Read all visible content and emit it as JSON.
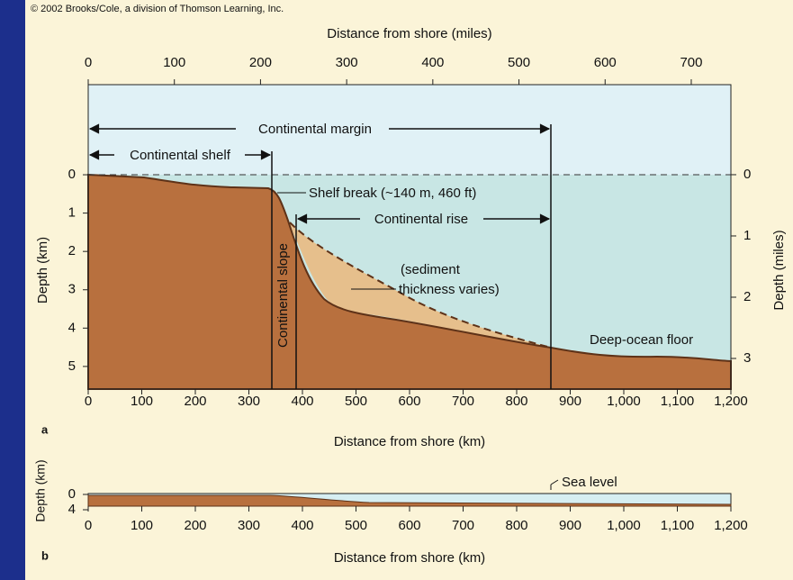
{
  "copyright": "© 2002 Brooks/Cole, a division of Thomson Learning, Inc.",
  "panel_a": {
    "label": "a",
    "top_axis": {
      "title": "Distance from shore (miles)",
      "lim": [
        0,
        746
      ],
      "ticks": [
        0,
        100,
        200,
        300,
        400,
        500,
        600,
        700
      ]
    },
    "bottom_axis": {
      "title": "Distance from shore (km)",
      "lim": [
        0,
        1200
      ],
      "ticks": [
        0,
        100,
        200,
        300,
        400,
        500,
        600,
        700,
        800,
        900,
        {
          "value": 1000,
          "label": "1,000"
        },
        {
          "value": 1100,
          "label": "1,100"
        },
        {
          "value": 1200,
          "label": "1,200"
        }
      ]
    },
    "left_axis": {
      "title": "Depth (km)",
      "lim": [
        -2.35,
        5.59
      ],
      "ticks": [
        0,
        1,
        2,
        3,
        4,
        5
      ]
    },
    "right_axis": {
      "title": "Depth (miles)",
      "lim": [
        -1.47,
        3.5
      ],
      "ticks": [
        0,
        1,
        2,
        3
      ]
    },
    "annotations": {
      "continental_margin": "Continental margin",
      "continental_shelf": "Continental shelf",
      "shelf_break": "Shelf break (~140 m, 460 ft)",
      "continental_rise": "Continental rise",
      "sediment_1": "(sediment",
      "sediment_2": "thickness varies)",
      "continental_slope": "Continental slope",
      "deep_ocean_floor": "Deep-ocean floor"
    }
  },
  "panel_b": {
    "label": "b",
    "bottom_axis": {
      "title": "Distance from shore (km)",
      "lim": [
        0,
        1200
      ],
      "ticks": [
        0,
        100,
        200,
        300,
        400,
        500,
        600,
        700,
        800,
        900,
        {
          "value": 1000,
          "label": "1,000"
        },
        {
          "value": 1100,
          "label": "1,100"
        },
        {
          "value": 1200,
          "label": "1,200"
        }
      ]
    },
    "left_axis": {
      "title": "Depth (km)",
      "lim": [
        0,
        4
      ],
      "ticks": [
        0,
        4
      ]
    },
    "annotations": {
      "sea_level": "Sea level"
    }
  }
}
